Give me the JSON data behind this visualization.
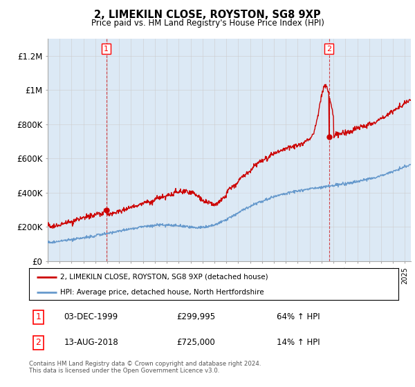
{
  "title": "2, LIMEKILN CLOSE, ROYSTON, SG8 9XP",
  "subtitle": "Price paid vs. HM Land Registry's House Price Index (HPI)",
  "sale1_date": "03-DEC-1999",
  "sale1_price": 299995,
  "sale1_year": 1999.917,
  "sale1_pct": "64% ↑ HPI",
  "sale2_date": "13-AUG-2018",
  "sale2_price": 725000,
  "sale2_year": 2018.625,
  "sale2_pct": "14% ↑ HPI",
  "legend_line1": "2, LIMEKILN CLOSE, ROYSTON, SG8 9XP (detached house)",
  "legend_line2": "HPI: Average price, detached house, North Hertfordshire",
  "footnote": "Contains HM Land Registry data © Crown copyright and database right 2024.\nThis data is licensed under the Open Government Licence v3.0.",
  "hpi_color": "#6699cc",
  "price_color": "#cc0000",
  "fill_color": "#dce9f5",
  "marker_color": "#cc0000",
  "background_color": "#ffffff",
  "grid_color": "#cccccc",
  "ylim": [
    0,
    1300000
  ],
  "xlim": [
    1995,
    2025.5
  ],
  "yticks": [
    0,
    200000,
    400000,
    600000,
    800000,
    1000000,
    1200000
  ],
  "ytick_labels": [
    "£0",
    "£200K",
    "£400K",
    "£600K",
    "£800K",
    "£1M",
    "£1.2M"
  ]
}
